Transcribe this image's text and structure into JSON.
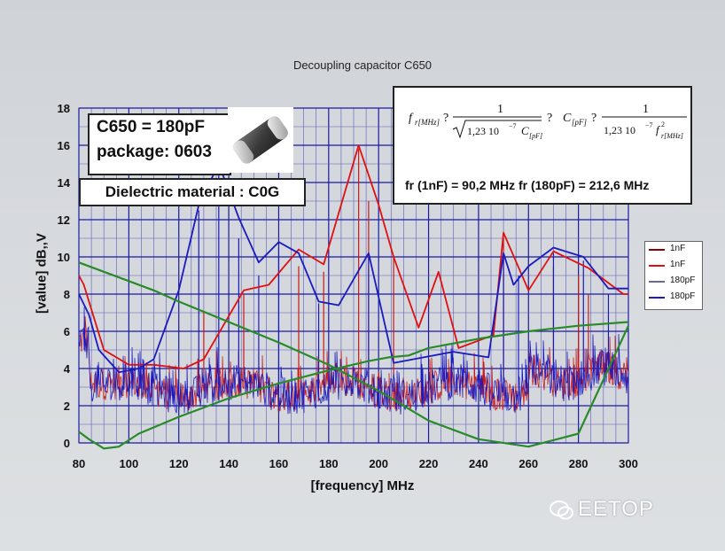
{
  "chart_data": {
    "type": "line",
    "title": "Decoupling capacitor C650",
    "xlabel": "[frequency] MHz",
    "ylabel": "[value] dB,,V",
    "xlim": [
      80,
      300
    ],
    "ylim": [
      0,
      18
    ],
    "xticks": [
      80,
      100,
      120,
      140,
      160,
      180,
      200,
      220,
      240,
      260,
      280,
      300
    ],
    "yticks": [
      0,
      2,
      4,
      6,
      8,
      10,
      12,
      14,
      16,
      18
    ],
    "grid": true,
    "legend_position": "right",
    "series": [
      {
        "name": "1nF",
        "color": "#8b0000",
        "style": "noise",
        "values": []
      },
      {
        "name": "1nF",
        "color": "#e01010",
        "style": "peak-envelope",
        "x": [
          80,
          82,
          90,
          100,
          110,
          122,
          130,
          146,
          156,
          168,
          178,
          192,
          200,
          206,
          216,
          224,
          232,
          246,
          250,
          260,
          270,
          284,
          298,
          300
        ],
        "y": [
          9,
          8.5,
          5,
          4.2,
          4.2,
          4,
          4.5,
          8.2,
          8.5,
          10.4,
          9.6,
          16,
          12.8,
          10,
          6.2,
          9.2,
          5.1,
          5.8,
          11.3,
          8.2,
          10.3,
          9.4,
          8,
          8
        ]
      },
      {
        "name": "180pF",
        "color": "#6a6a9a",
        "style": "noise",
        "values": []
      },
      {
        "name": "180pF",
        "color": "#1a1ac0",
        "style": "peak-envelope",
        "x": [
          80,
          84,
          88,
          96,
          104,
          110,
          120,
          128,
          136,
          144,
          152,
          160,
          168,
          176,
          184,
          196,
          206,
          214,
          230,
          244,
          250,
          254,
          260,
          270,
          282,
          292,
          300
        ],
        "y": [
          8,
          6.9,
          5,
          3.8,
          4,
          4.5,
          8.2,
          12.8,
          15,
          12.1,
          9.7,
          10.8,
          10.2,
          7.6,
          7.4,
          10.2,
          4.3,
          4.5,
          4.9,
          4.6,
          10.2,
          8.5,
          9.5,
          10.5,
          10,
          8.3,
          8.3
        ]
      },
      {
        "name": "",
        "color": "#2a8a2a",
        "style": "impedance-1nF",
        "x": [
          80,
          90,
          100,
          110,
          120,
          140,
          160,
          180,
          200,
          220,
          240,
          260,
          280,
          300
        ],
        "y": [
          9.7,
          9.2,
          8.7,
          8.2,
          7.6,
          6.5,
          5.4,
          4.2,
          2.8,
          1.2,
          0.2,
          -0.2,
          0.5,
          6.3
        ]
      },
      {
        "name": "",
        "color": "#2a8a2a",
        "style": "impedance-180pF",
        "x": [
          80,
          84,
          90,
          96,
          104,
          120,
          140,
          160,
          180,
          196,
          204,
          212,
          220,
          240,
          260,
          280,
          300
        ],
        "y": [
          0.6,
          0.2,
          -0.3,
          -0.2,
          0.5,
          1.4,
          2.4,
          3.2,
          3.9,
          4.4,
          4.6,
          4.7,
          5.1,
          5.6,
          6.0,
          6.3,
          6.5
        ]
      }
    ],
    "annotations": {
      "cap_value": "C650 = 180pF",
      "package": "package: 0603",
      "dielectric": "Dielectric material : C0G",
      "fr_results": "fr (1nF) = 90,2 MHz   fr (180pF) = 212,6 MHz"
    }
  },
  "formula": {
    "lhs1": "f",
    "lhs1_sub": "r[MHz]",
    "q1": "?",
    "num1": "1",
    "den1": "1,23  10",
    "den1_exp": "−7",
    "den1_c": "C",
    "den1_c_sub": "[pF]",
    "q2": "?",
    "lhs2": "C",
    "lhs2_sub": "[pF]",
    "q3": "?",
    "num2": "1",
    "den2": "1,23  10",
    "den2_exp": "−7",
    "den2_f": "f",
    "den2_f_sup": "2",
    "den2_f_sub": "r[MHz]"
  },
  "legend": {
    "items": [
      {
        "label": "1nF",
        "color": "#8b0000"
      },
      {
        "label": "1nF",
        "color": "#e01010"
      },
      {
        "label": "180pF",
        "color": "#6a6a9a"
      },
      {
        "label": "180pF",
        "color": "#1a1ac0"
      }
    ]
  },
  "watermark": {
    "text": "EETOP"
  }
}
